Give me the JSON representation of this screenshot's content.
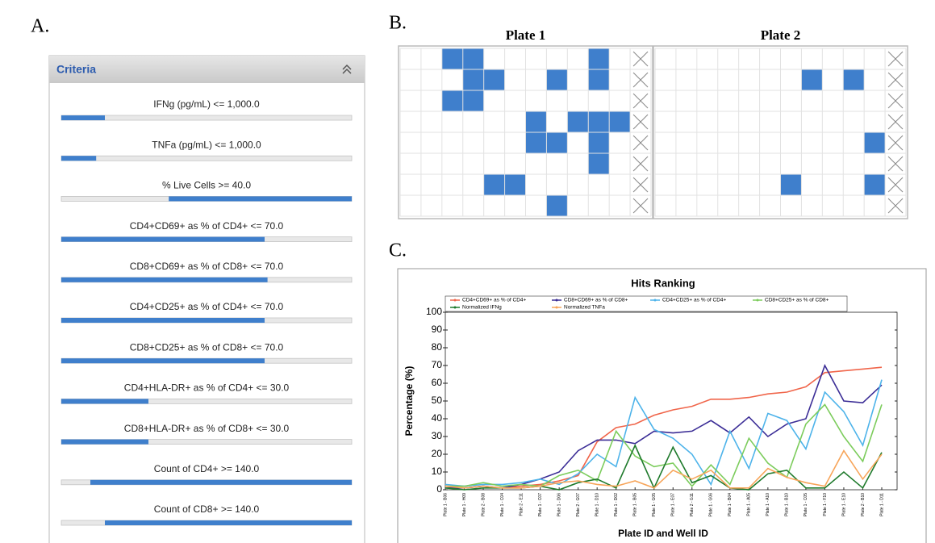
{
  "panel_labels": [
    "A.",
    "B.",
    "C."
  ],
  "criteria": {
    "title": "Criteria",
    "items": [
      {
        "label": "IFNg (pg/mL) <= 1,000.0",
        "fill": [
          0,
          0.15
        ]
      },
      {
        "label": "TNFa (pg/mL) <= 1,000.0",
        "fill": [
          0,
          0.12
        ]
      },
      {
        "label": "% Live Cells >= 40.0",
        "fill": [
          0.37,
          1
        ]
      },
      {
        "label": "CD4+CD69+ as % of CD4+ <= 70.0",
        "fill": [
          0,
          0.7
        ]
      },
      {
        "label": "CD8+CD69+ as % of CD8+ <= 70.0",
        "fill": [
          0,
          0.71
        ]
      },
      {
        "label": "CD4+CD25+ as % of CD4+ <= 70.0",
        "fill": [
          0,
          0.7
        ]
      },
      {
        "label": "CD8+CD25+ as % of CD8+ <= 70.0",
        "fill": [
          0,
          0.7
        ]
      },
      {
        "label": "CD4+HLA-DR+ as % of CD4+ <= 30.0",
        "fill": [
          0,
          0.3
        ]
      },
      {
        "label": "CD8+HLA-DR+ as % of CD8+ <= 30.0",
        "fill": [
          0,
          0.3
        ]
      },
      {
        "label": "Count of CD4+ >= 140.0",
        "fill": [
          0.1,
          1
        ]
      },
      {
        "label": "Count of CD8+ >= 140.0",
        "fill": [
          0.15,
          1
        ]
      }
    ]
  },
  "plates": [
    {
      "title": "Plate 1",
      "rows": 8,
      "columns": 12,
      "hits": [
        [
          0,
          2
        ],
        [
          0,
          3
        ],
        [
          0,
          9
        ],
        [
          1,
          3
        ],
        [
          1,
          4
        ],
        [
          1,
          7
        ],
        [
          1,
          9
        ],
        [
          2,
          2
        ],
        [
          2,
          3
        ],
        [
          3,
          6
        ],
        [
          3,
          8
        ],
        [
          3,
          9
        ],
        [
          3,
          10
        ],
        [
          4,
          6
        ],
        [
          4,
          7
        ],
        [
          4,
          9
        ],
        [
          5,
          9
        ],
        [
          6,
          4
        ],
        [
          6,
          5
        ],
        [
          7,
          7
        ]
      ]
    },
    {
      "title": "Plate 2",
      "rows": 8,
      "columns": 12,
      "hits": [
        [
          1,
          7
        ],
        [
          1,
          9
        ],
        [
          4,
          10
        ],
        [
          6,
          6
        ],
        [
          6,
          10
        ]
      ]
    }
  ],
  "chart_data": {
    "type": "line",
    "title": "Hits Ranking",
    "x_label": "Plate ID and Well ID",
    "y_label": "Percentage (%)",
    "categories": [
      "Plate 1 - B06",
      "Plate 1 - H09",
      "Plate 2 - B08",
      "Plate 1 - C04",
      "Plate 2 - E11",
      "Plate 1 - C07",
      "Plate 1 - D06",
      "Plate 2 - G07",
      "Plate 1 - D10",
      "Plate 1 - D02",
      "Plate 1 - B05",
      "Plate 1 - G05",
      "Plate 1 - E07",
      "Plate 2 - G11",
      "Plate 1 - G06",
      "Plate 1 - B04",
      "Plate 1 - A05",
      "Plate 1 - A10",
      "Plate 1 - B10",
      "Plate 1 - C05",
      "Plate 1 - F10",
      "Plate 1 - E10",
      "Plate 2 - B10",
      "Plate 1 - D11"
    ],
    "series": [
      {
        "name": "CD4+CD69+ as % of CD4+",
        "color": "#f0654a",
        "values": [
          2,
          1,
          2,
          1,
          2,
          3,
          5,
          8,
          27,
          35,
          37,
          42,
          45,
          47,
          51,
          51,
          52,
          54,
          55,
          58,
          66,
          67,
          68,
          69
        ]
      },
      {
        "name": "CD8+CD69+ as % of CD8+",
        "color": "#3b2d96",
        "values": [
          1,
          1,
          2,
          1,
          3,
          6,
          10,
          22,
          28,
          28,
          26,
          33,
          32,
          33,
          39,
          32,
          41,
          30,
          37,
          40,
          70,
          50,
          49,
          59
        ]
      },
      {
        "name": "CD4+CD25+ as % of CD4+",
        "color": "#4db3ea",
        "values": [
          3,
          2,
          3,
          3,
          4,
          6,
          3,
          9,
          20,
          13,
          52,
          34,
          29,
          20,
          3,
          33,
          12,
          43,
          39,
          23,
          55,
          44,
          25,
          62
        ]
      },
      {
        "name": "CD8+CD25+ as % of CD8+",
        "color": "#7ccc5c",
        "values": [
          2,
          2,
          4,
          2,
          3,
          2,
          8,
          11,
          5,
          33,
          19,
          13,
          15,
          2,
          14,
          3,
          29,
          15,
          7,
          37,
          48,
          30,
          16,
          48
        ]
      },
      {
        "name": "Normalized IFNg",
        "color": "#1f7a2c",
        "values": [
          1,
          0,
          1,
          1,
          1,
          2,
          0,
          4,
          6,
          1,
          25,
          1,
          24,
          4,
          8,
          1,
          0,
          9,
          11,
          1,
          1,
          10,
          1,
          21
        ]
      },
      {
        "name": "Normalized TNFa",
        "color": "#f7a55a",
        "values": [
          2,
          1,
          2,
          1,
          1,
          2,
          4,
          5,
          3,
          2,
          5,
          1,
          11,
          6,
          11,
          1,
          1,
          12,
          7,
          4,
          2,
          22,
          6,
          20
        ]
      }
    ],
    "ylim": [
      0,
      100
    ],
    "yticks": [
      0,
      10,
      20,
      30,
      40,
      50,
      60,
      70,
      80,
      90,
      100
    ],
    "legend": "top"
  }
}
